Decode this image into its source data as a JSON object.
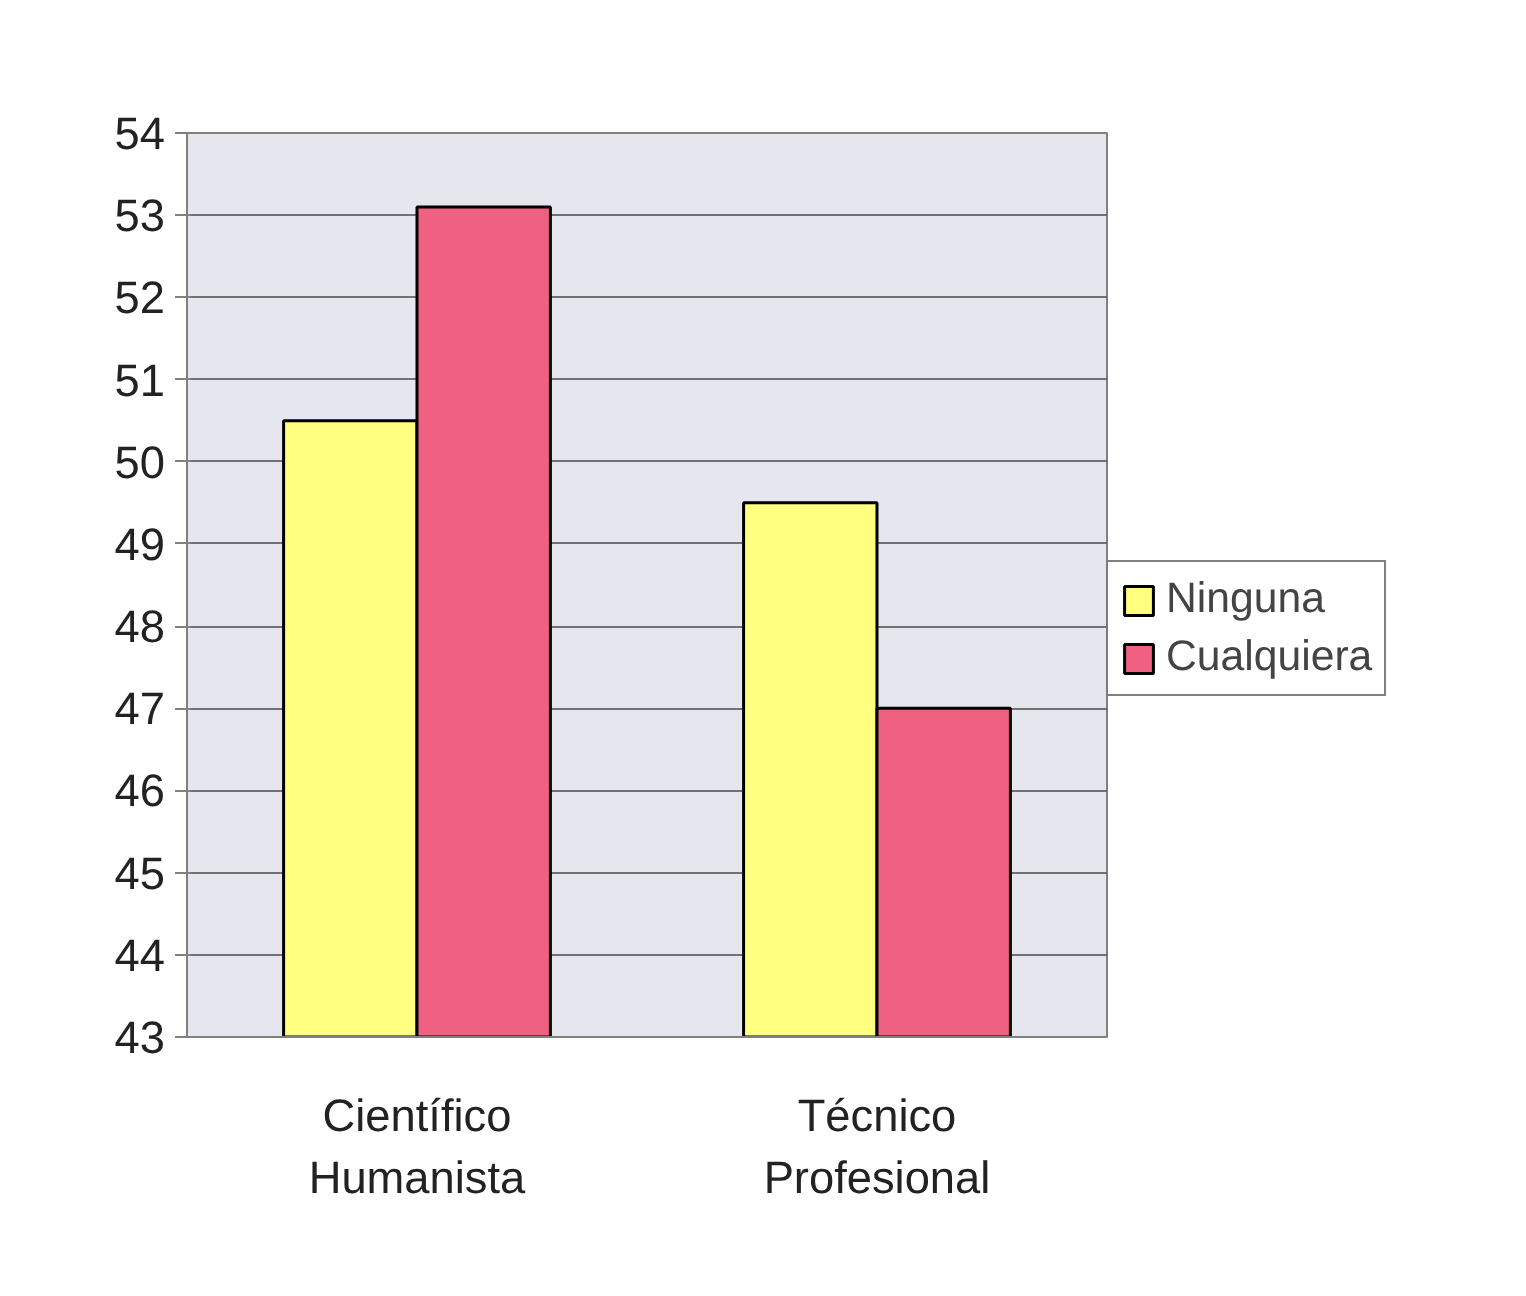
{
  "chart_data": {
    "type": "bar",
    "categories": [
      "Científico\nHumanista",
      "Técnico\nProfesional"
    ],
    "series": [
      {
        "name": "Ninguna",
        "color": "#ffff80",
        "values": [
          50.5,
          49.5
        ]
      },
      {
        "name": "Cualquiera",
        "color": "#f06080",
        "values": [
          53.1,
          47.0
        ]
      }
    ],
    "ylim": [
      43,
      54
    ],
    "yticks": [
      43,
      44,
      45,
      46,
      47,
      48,
      49,
      50,
      51,
      52,
      53,
      54
    ],
    "grid": "y",
    "legend": "right"
  }
}
